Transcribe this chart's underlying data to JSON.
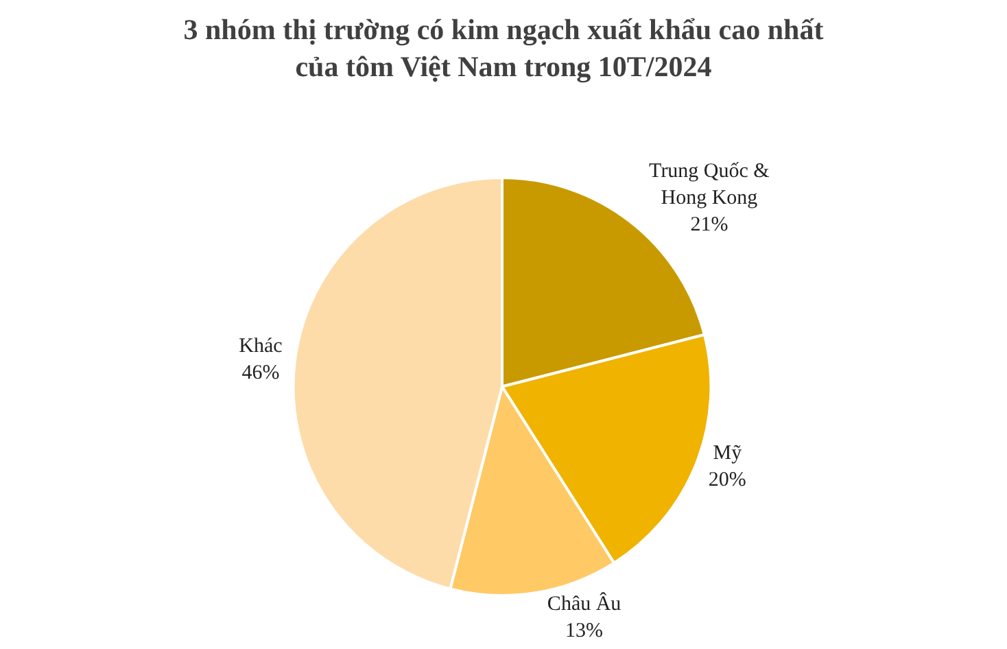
{
  "chart_data": {
    "type": "pie",
    "title": "3 nhóm thị trường có kim ngạch xuất khẩu cao nhất\ncủa tôm Việt Nam trong 10T/2024",
    "categories": [
      "Trung Quốc &\nHong Kong",
      "Mỹ",
      "Châu Âu",
      "Khác"
    ],
    "values": [
      21,
      20,
      13,
      46
    ],
    "value_labels": [
      "21%",
      "20%",
      "13%",
      "46%"
    ],
    "colors": [
      "#c99a00",
      "#efb300",
      "#ffc966",
      "#fddcaa"
    ],
    "legend": false
  }
}
